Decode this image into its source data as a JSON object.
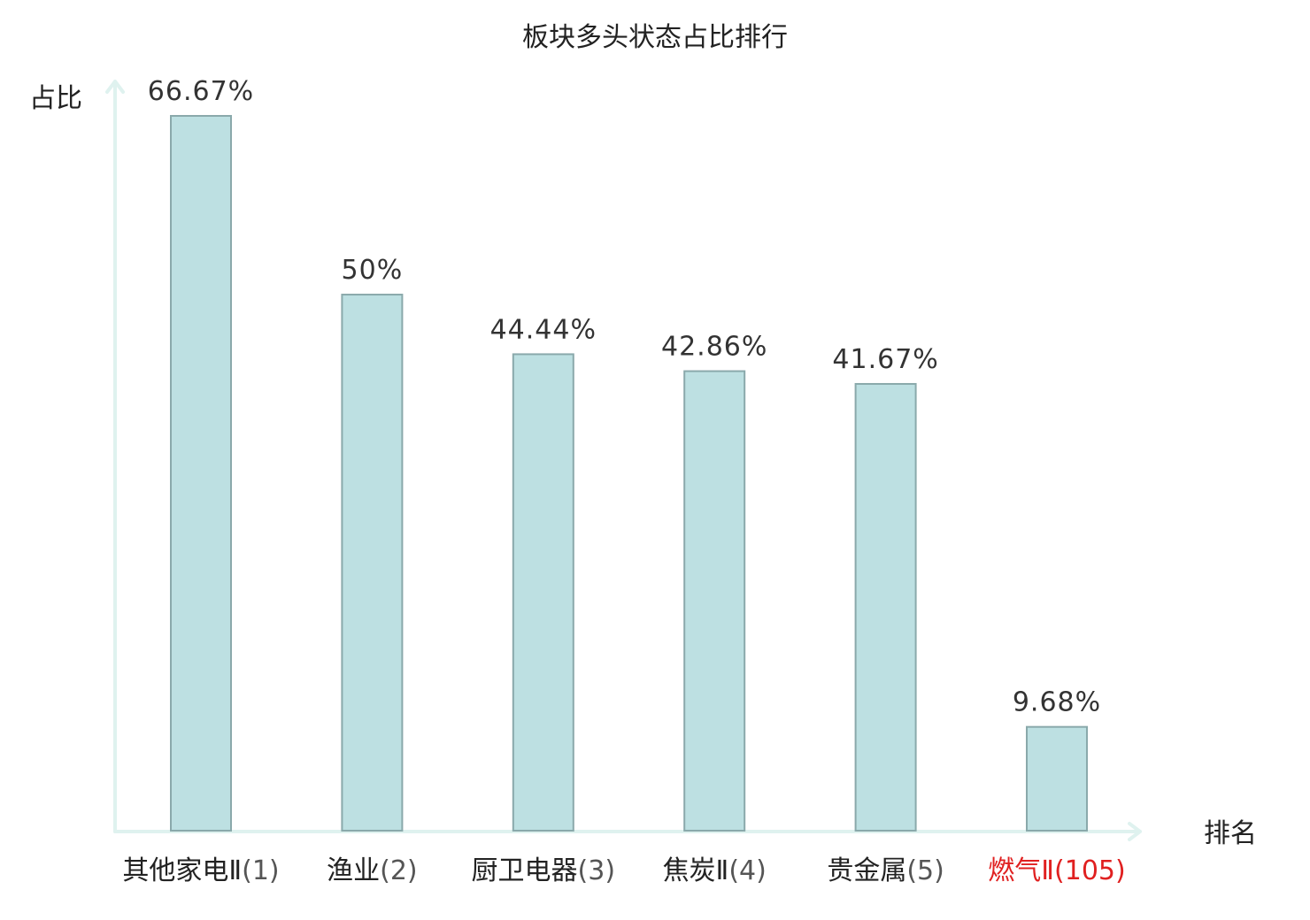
{
  "chart_data": {
    "type": "bar",
    "title": "板块多头状态占比排行",
    "ylabel": "占比",
    "xlabel": "排名",
    "ylim": [
      0,
      70
    ],
    "categories": [
      {
        "name": "其他家电",
        "suffix": "Ⅱ",
        "rank": "(1)",
        "highlight": false
      },
      {
        "name": "渔业",
        "suffix": "",
        "rank": "(2)",
        "highlight": false
      },
      {
        "name": "厨卫电器",
        "suffix": "",
        "rank": "(3)",
        "highlight": false
      },
      {
        "name": "焦炭",
        "suffix": "Ⅱ",
        "rank": "(4)",
        "highlight": false
      },
      {
        "name": "贵金属",
        "suffix": "",
        "rank": "(5)",
        "highlight": false
      },
      {
        "name": "燃气",
        "suffix": "Ⅱ",
        "rank": "(105)",
        "highlight": true
      }
    ],
    "values": [
      66.67,
      50,
      44.44,
      42.86,
      41.67,
      9.68
    ],
    "value_labels": [
      "66.67%",
      "50%",
      "44.44%",
      "42.86%",
      "41.67%",
      "9.68%"
    ],
    "colors": {
      "bar_fill": "#bde0e2",
      "bar_stroke": "#8aa9ab",
      "axis": "#dff2ef",
      "highlight": "#e02020"
    },
    "grid": false,
    "legend": "none"
  }
}
